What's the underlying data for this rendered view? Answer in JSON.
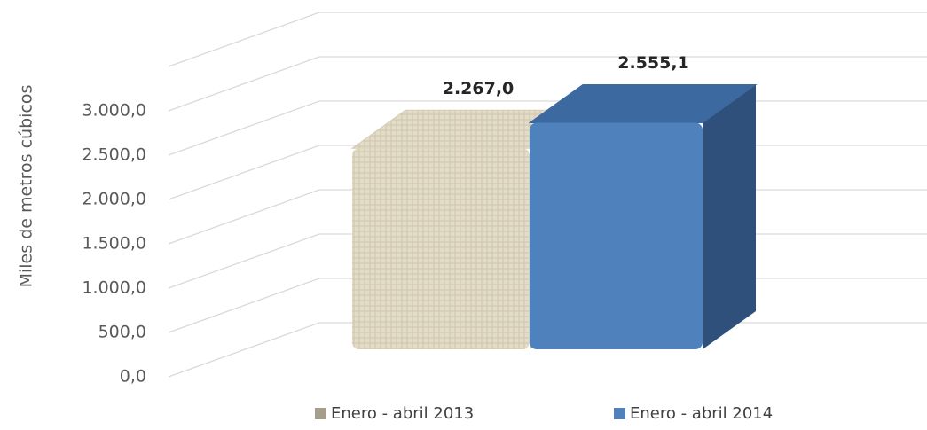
{
  "chart_data": {
    "type": "bar3d",
    "y_label": "Miles de metros cúbicos",
    "series": [
      {
        "name": "Enero - abril 2013",
        "color": "#ddd5bf",
        "values": [
          2267.0
        ],
        "value_labels": [
          "2.267,0"
        ]
      },
      {
        "name": "Enero - abril 2014",
        "color": "#4f81bd",
        "values": [
          2555.1
        ],
        "value_labels": [
          "2.555,1"
        ]
      }
    ],
    "ylim": [
      0,
      3500
    ],
    "yticks": [
      {
        "value": 0,
        "label": "0,0"
      },
      {
        "value": 500,
        "label": "500,0"
      },
      {
        "value": 1000,
        "label": "1.000,0"
      },
      {
        "value": 1500,
        "label": "1.500,0"
      },
      {
        "value": 2000,
        "label": "2.000,0"
      },
      {
        "value": 2500,
        "label": "2.500,0"
      },
      {
        "value": 3000,
        "label": "3.000,0"
      }
    ],
    "grid": true
  }
}
